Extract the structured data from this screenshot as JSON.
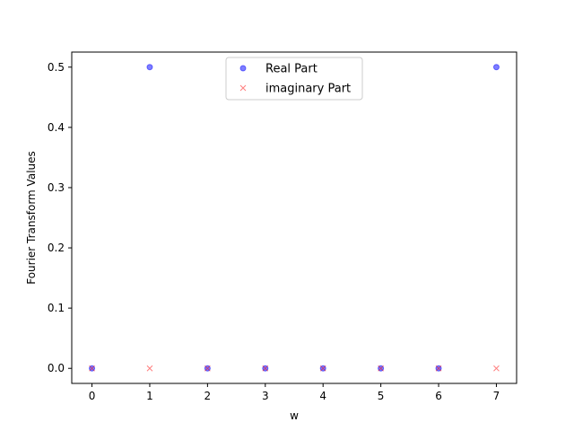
{
  "chart_data": {
    "type": "scatter",
    "xlabel": "w",
    "ylabel": "Fourier Transform Values",
    "xlim": [
      -0.35,
      7.35
    ],
    "ylim": [
      -0.025,
      0.525
    ],
    "xticks": [
      0,
      1,
      2,
      3,
      4,
      5,
      6,
      7
    ],
    "yticks": [
      0.0,
      0.1,
      0.2,
      0.3,
      0.4,
      0.5
    ],
    "xtick_labels": [
      "0",
      "1",
      "2",
      "3",
      "4",
      "5",
      "6",
      "7"
    ],
    "ytick_labels": [
      "0.0",
      "0.1",
      "0.2",
      "0.3",
      "0.4",
      "0.5"
    ],
    "legend_position": "top-center",
    "series": [
      {
        "name": "Real Part",
        "marker": "circle",
        "color": "#0000ff",
        "x": [
          0,
          1,
          2,
          3,
          4,
          5,
          6,
          7
        ],
        "y": [
          0.0,
          0.5,
          0.0,
          0.0,
          0.0,
          0.0,
          0.0,
          0.5
        ]
      },
      {
        "name": "imaginary Part",
        "marker": "x",
        "color": "#ff0000",
        "x": [
          0,
          1,
          2,
          3,
          4,
          5,
          6,
          7
        ],
        "y": [
          0.0,
          0.0,
          0.0,
          0.0,
          0.0,
          0.0,
          0.0,
          0.0
        ]
      }
    ]
  }
}
